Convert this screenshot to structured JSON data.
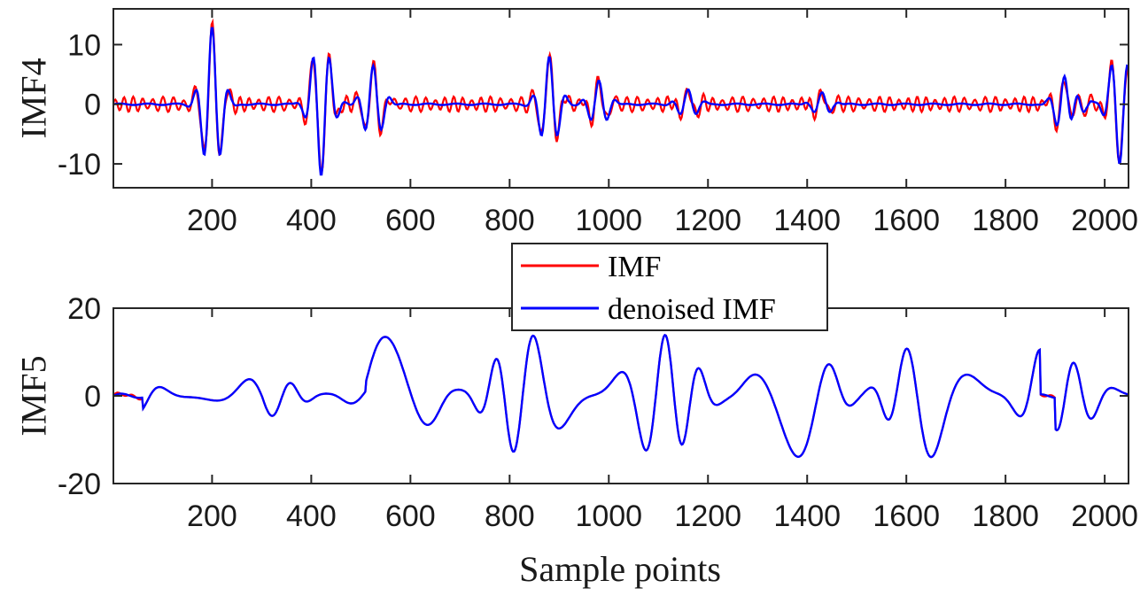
{
  "chart_data": [
    {
      "type": "line",
      "ylabel": "IMF4",
      "xlabel": "",
      "xlim": [
        1,
        2048
      ],
      "ylim": [
        -14,
        16
      ],
      "xticks": [
        200,
        400,
        600,
        800,
        1000,
        1200,
        1400,
        1600,
        1800,
        2000
      ],
      "yticks": [
        -10,
        0,
        10
      ],
      "xtick_labels": [
        "200",
        "400",
        "600",
        "800",
        "1000",
        "1200",
        "1400",
        "1600",
        "1800",
        "2000"
      ],
      "ytick_labels": [
        "-10",
        "0",
        "10"
      ],
      "series": [
        {
          "name": "IMF",
          "color": "#ff0000",
          "noise_amplitude": 1.3,
          "events": [
            [
              200,
              13
            ],
            [
              420,
              -12
            ],
            [
              525,
              6.5
            ],
            [
              880,
              8
            ],
            [
              980,
              4
            ],
            [
              1160,
              2.5
            ],
            [
              1430,
              2
            ],
            [
              1920,
              6
            ],
            [
              1940,
              3
            ],
            [
              2030,
              -10
            ]
          ]
        },
        {
          "name": "denoised IMF",
          "color": "#0000ff",
          "events": [
            [
              200,
              13
            ],
            [
              420,
              -12
            ],
            [
              525,
              6.5
            ],
            [
              880,
              8
            ],
            [
              980,
              4
            ],
            [
              1160,
              2.5
            ],
            [
              1430,
              2
            ],
            [
              1920,
              6
            ],
            [
              1940,
              3
            ],
            [
              2030,
              -10
            ]
          ]
        }
      ]
    },
    {
      "type": "line",
      "ylabel": "IMF5",
      "xlabel": "Sample points",
      "xlim": [
        1,
        2048
      ],
      "ylim": [
        -20,
        20
      ],
      "xticks": [
        200,
        400,
        600,
        800,
        1000,
        1200,
        1400,
        1600,
        1800,
        2000
      ],
      "yticks": [
        -20,
        0,
        20
      ],
      "xtick_labels": [
        "200",
        "400",
        "600",
        "800",
        "1000",
        "1200",
        "1400",
        "1600",
        "1800",
        "2000"
      ],
      "ytick_labels": [
        "-20",
        "0",
        "20"
      ],
      "series": [
        {
          "name": "IMF",
          "color": "#ff0000",
          "active_ranges": [
            [
              60,
              300,
              4
            ],
            [
              300,
              510,
              5
            ],
            [
              510,
              1870,
              14
            ],
            [
              1900,
              2048,
              8
            ]
          ]
        },
        {
          "name": "denoised IMF",
          "color": "#0000ff",
          "active_ranges": [
            [
              60,
              300,
              4
            ],
            [
              300,
              510,
              5
            ],
            [
              510,
              1870,
              14
            ],
            [
              1900,
              2048,
              8
            ]
          ]
        }
      ]
    }
  ],
  "legend": {
    "placement": "center",
    "entries": [
      {
        "label": "IMF",
        "color": "#ff0000"
      },
      {
        "label": "denoised IMF",
        "color": "#0000ff"
      }
    ]
  }
}
